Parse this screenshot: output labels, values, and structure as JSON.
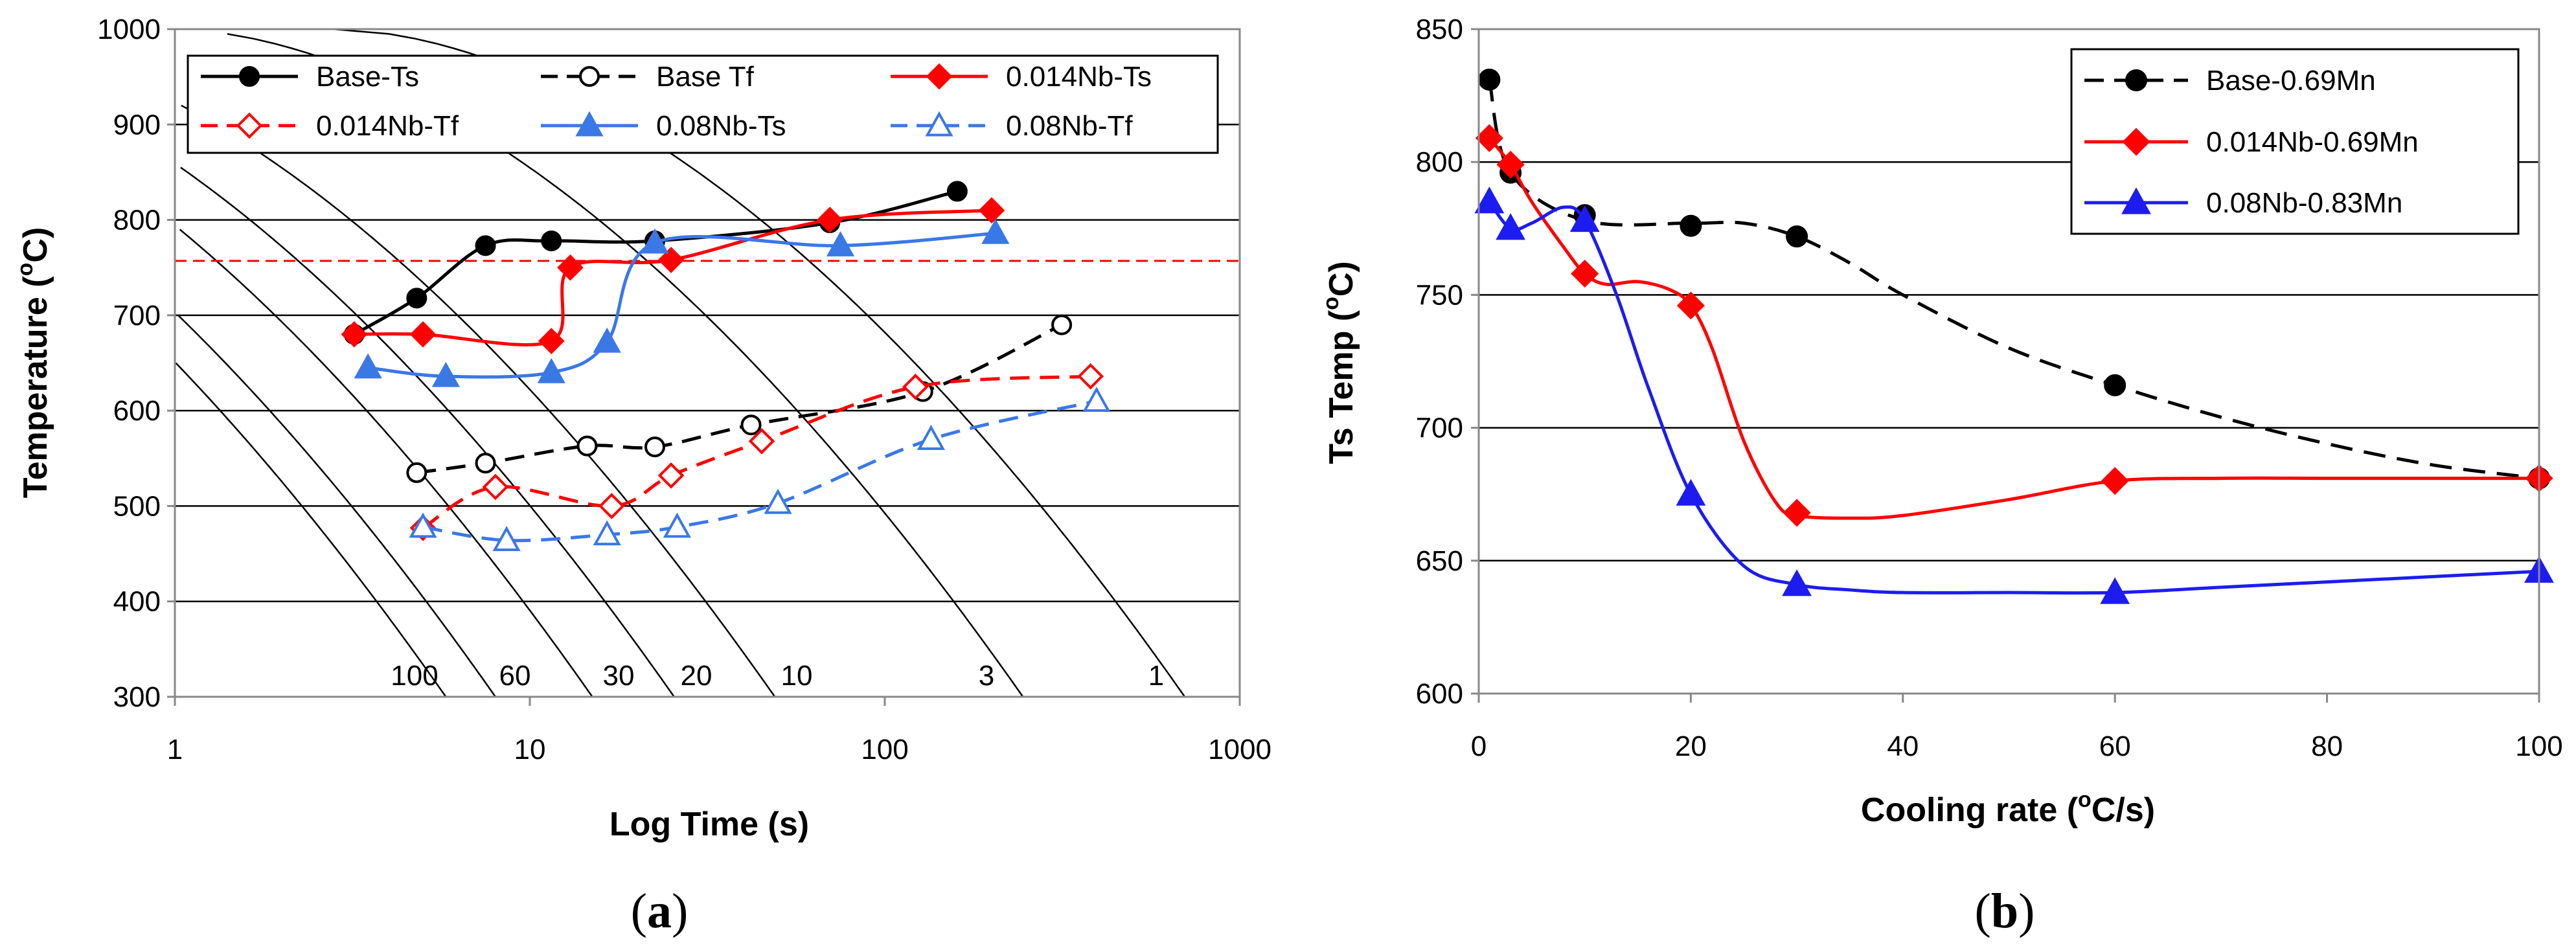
{
  "chart_data": [
    {
      "type": "line",
      "panel_label": "a",
      "panel_label_full": "(a)",
      "xlabel": "Log Time (s)",
      "ylabel": "Temperature (oC)",
      "ylabel_main": "Temperature (",
      "ylabel_sup": "o",
      "ylabel_tail": "C)",
      "xscale": "log",
      "xlim": [
        1,
        1000
      ],
      "ylim": [
        300,
        1000
      ],
      "xticks": [
        1,
        10,
        100,
        1000
      ],
      "xtick_labels": [
        "1",
        "10",
        "100",
        "1000"
      ],
      "yticks": [
        300,
        400,
        500,
        600,
        700,
        800,
        900,
        1000
      ],
      "ytick_labels": [
        "300",
        "400",
        "500",
        "600",
        "700",
        "800",
        "900",
        "1000"
      ],
      "grid": "horizontal",
      "reference_line": {
        "y": 757,
        "color": "#ff0000",
        "style": "dashed"
      },
      "cooling_curve_labels": [
        "100",
        "60",
        "30",
        "20",
        "10",
        "3",
        "1"
      ],
      "cooling_curves": [
        {
          "rate": 100,
          "t_at_300": 5.8
        },
        {
          "rate": 60,
          "t_at_300": 8.0
        },
        {
          "rate": 30,
          "t_at_300": 15.0
        },
        {
          "rate": 20,
          "t_at_300": 25.5
        },
        {
          "rate": 10,
          "t_at_300": 49.0
        },
        {
          "rate": 3,
          "t_at_300": 245.0
        },
        {
          "rate": 1,
          "t_at_300": 700.0
        }
      ],
      "legend": {
        "placement": "top-left"
      },
      "series": [
        {
          "name": "Base-Ts",
          "color": "#000000",
          "dash": "solid",
          "marker": "circle",
          "filled": true,
          "x": [
            3.2,
            4.8,
            7.5,
            11.5,
            22.5,
            70,
            160
          ],
          "y": [
            680,
            718,
            773,
            778,
            778,
            797,
            830
          ]
        },
        {
          "name": "Base Tf",
          "color": "#000000",
          "dash": "dashed",
          "marker": "circle",
          "filled": false,
          "x": [
            4.8,
            7.5,
            14.5,
            22.5,
            42,
            128,
            315
          ],
          "y": [
            535,
            545,
            563,
            562,
            585,
            620,
            690
          ]
        },
        {
          "name": "0.014Nb-Ts",
          "color": "#ff0000",
          "dash": "solid",
          "marker": "diamond",
          "filled": true,
          "x": [
            3.2,
            5.0,
            11.5,
            13.0,
            25.0,
            70,
            200
          ],
          "y": [
            680,
            680,
            673,
            750,
            758,
            800,
            810
          ]
        },
        {
          "name": "0.014Nb-Tf",
          "color": "#ff0000",
          "dash": "dashed",
          "marker": "diamond",
          "filled": false,
          "x": [
            5.0,
            8.0,
            17.0,
            25.0,
            45,
            122,
            380
          ],
          "y": [
            477,
            520,
            500,
            532,
            568,
            625,
            636
          ]
        },
        {
          "name": "0.08Nb-Ts",
          "color": "#3a78e6",
          "dash": "solid",
          "marker": "triangle",
          "filled": true,
          "x": [
            3.5,
            5.8,
            11.5,
            16.5,
            22.5,
            75,
            205
          ],
          "y": [
            645,
            636,
            640,
            672,
            776,
            773,
            786
          ]
        },
        {
          "name": "0.08Nb-Tf",
          "color": "#3a78e6",
          "dash": "dashed",
          "marker": "triangle",
          "filled": false,
          "x": [
            5.0,
            8.6,
            16.5,
            26.0,
            50,
            135,
            395
          ],
          "y": [
            478,
            464,
            470,
            478,
            503,
            570,
            610
          ]
        }
      ]
    },
    {
      "type": "line",
      "panel_label": "b",
      "panel_label_full": "(b)",
      "xlabel": "Cooling rate (oC/s)",
      "xlabel_main": "Cooling rate (",
      "xlabel_sup": "o",
      "xlabel_tail": "C/s)",
      "ylabel": "Ts Temp (oC)",
      "ylabel_main": "Ts Temp (",
      "ylabel_sup": "o",
      "ylabel_tail": "C)",
      "xlim": [
        0,
        100
      ],
      "ylim": [
        600,
        850
      ],
      "xticks": [
        0,
        20,
        40,
        60,
        80,
        100
      ],
      "xtick_labels": [
        "0",
        "20",
        "40",
        "60",
        "80",
        "100"
      ],
      "yticks": [
        600,
        650,
        700,
        750,
        800,
        850
      ],
      "ytick_labels": [
        "600",
        "650",
        "700",
        "750",
        "800",
        "850"
      ],
      "grid": "horizontal",
      "legend": {
        "placement": "top-right"
      },
      "series": [
        {
          "name": "Base-0.69Mn",
          "color": "#000000",
          "dash": "dashed",
          "marker": "circle",
          "x": [
            1,
            3,
            10,
            20,
            30,
            60,
            100
          ],
          "y": [
            831,
            796,
            780,
            776,
            772,
            716,
            681
          ],
          "curve_x": [
            1,
            3,
            10,
            20,
            25,
            30,
            35,
            40,
            50,
            60,
            70,
            80,
            90,
            100
          ],
          "curve_y": [
            831,
            796,
            778,
            777,
            777,
            772,
            762,
            750,
            730,
            716,
            704,
            694,
            686,
            681
          ]
        },
        {
          "name": "0.014Nb-0.69Mn",
          "color": "#ff0000",
          "dash": "solid",
          "marker": "diamond",
          "x": [
            1,
            3,
            10,
            20,
            30,
            60,
            100
          ],
          "y": [
            809,
            799,
            758,
            746,
            668,
            680,
            681
          ],
          "curve_x": [
            1,
            3,
            5,
            8,
            10,
            12,
            15,
            18,
            20,
            22,
            25,
            28,
            30,
            35,
            40,
            50,
            60,
            70,
            80,
            90,
            100
          ],
          "curve_y": [
            809,
            799,
            785,
            768,
            758,
            754,
            755,
            752,
            746,
            730,
            695,
            672,
            667,
            666,
            667,
            673,
            680,
            681,
            681,
            681,
            681
          ]
        },
        {
          "name": "0.08Nb-0.83Mn",
          "color": "#1c1cf0",
          "dash": "solid",
          "marker": "triangle",
          "x": [
            1,
            3,
            10,
            20,
            30,
            60,
            100
          ],
          "y": [
            785,
            775,
            778,
            675,
            641,
            638,
            646
          ],
          "curve_x": [
            1,
            3,
            5,
            8,
            10,
            13,
            16,
            20,
            25,
            30,
            35,
            40,
            50,
            60,
            70,
            80,
            90,
            100
          ],
          "curve_y": [
            785,
            775,
            777,
            783,
            778,
            750,
            715,
            675,
            648,
            641,
            639,
            638,
            638,
            638,
            640,
            642,
            644,
            646
          ]
        }
      ]
    }
  ]
}
